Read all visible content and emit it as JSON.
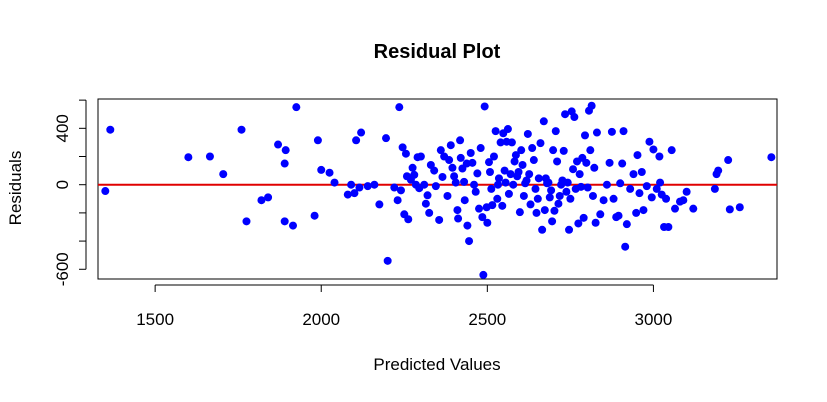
{
  "chart_data": {
    "type": "scatter",
    "title": "Residual Plot",
    "xlabel": "Predicted Values",
    "ylabel": "Residuals",
    "xlim": [
      1328,
      3372
    ],
    "ylim": [
      -669,
      608
    ],
    "xticks": [
      1500,
      2000,
      2500,
      3000
    ],
    "xtick_labels": [
      "1500",
      "2000",
      "2500",
      "3000"
    ],
    "yticks": [
      -600,
      -400,
      -200,
      0,
      200,
      400,
      600
    ],
    "ytick_labels": [
      "-600",
      "",
      "",
      "0",
      "",
      "400",
      ""
    ],
    "grid": false,
    "point_color": "#0000ff",
    "reference_line": {
      "y": 0,
      "color": "#e00000"
    },
    "points": [
      [
        1350,
        -45
      ],
      [
        1365,
        390
      ],
      [
        1600,
        195
      ],
      [
        1665,
        200
      ],
      [
        1705,
        75
      ],
      [
        1760,
        390
      ],
      [
        1775,
        -260
      ],
      [
        1820,
        -110
      ],
      [
        1840,
        -90
      ],
      [
        1870,
        285
      ],
      [
        1890,
        150
      ],
      [
        1893,
        245
      ],
      [
        1890,
        -260
      ],
      [
        1915,
        -290
      ],
      [
        1925,
        550
      ],
      [
        1980,
        -220
      ],
      [
        1990,
        315
      ],
      [
        2000,
        105
      ],
      [
        2025,
        85
      ],
      [
        2040,
        15
      ],
      [
        2080,
        -70
      ],
      [
        2090,
        0
      ],
      [
        2100,
        -60
      ],
      [
        2105,
        315
      ],
      [
        2115,
        -20
      ],
      [
        2120,
        370
      ],
      [
        2140,
        -10
      ],
      [
        2160,
        0
      ],
      [
        2175,
        -140
      ],
      [
        2195,
        330
      ],
      [
        2200,
        -540
      ],
      [
        2220,
        -20
      ],
      [
        2230,
        -110
      ],
      [
        2240,
        -40
      ],
      [
        2235,
        550
      ],
      [
        2245,
        265
      ],
      [
        2250,
        -210
      ],
      [
        2255,
        220
      ],
      [
        2258,
        60
      ],
      [
        2262,
        -245
      ],
      [
        2270,
        35
      ],
      [
        2275,
        120
      ],
      [
        2280,
        70
      ],
      [
        2285,
        0
      ],
      [
        2290,
        195
      ],
      [
        2295,
        -25
      ],
      [
        2300,
        200
      ],
      [
        2310,
        0
      ],
      [
        2315,
        -135
      ],
      [
        2320,
        -75
      ],
      [
        2325,
        -200
      ],
      [
        2330,
        140
      ],
      [
        2340,
        100
      ],
      [
        2345,
        -10
      ],
      [
        2355,
        -250
      ],
      [
        2360,
        245
      ],
      [
        2365,
        55
      ],
      [
        2370,
        200
      ],
      [
        2380,
        -80
      ],
      [
        2385,
        175
      ],
      [
        2390,
        280
      ],
      [
        2395,
        120
      ],
      [
        2400,
        60
      ],
      [
        2405,
        15
      ],
      [
        2410,
        -180
      ],
      [
        2412,
        -240
      ],
      [
        2418,
        315
      ],
      [
        2420,
        190
      ],
      [
        2425,
        115
      ],
      [
        2430,
        20
      ],
      [
        2432,
        -110
      ],
      [
        2438,
        150
      ],
      [
        2440,
        -290
      ],
      [
        2445,
        -400
      ],
      [
        2450,
        225
      ],
      [
        2455,
        155
      ],
      [
        2460,
        0
      ],
      [
        2465,
        -50
      ],
      [
        2470,
        80
      ],
      [
        2475,
        -170
      ],
      [
        2480,
        260
      ],
      [
        2485,
        -230
      ],
      [
        2488,
        -640
      ],
      [
        2492,
        555
      ],
      [
        2498,
        -160
      ],
      [
        2500,
        -270
      ],
      [
        2505,
        160
      ],
      [
        2508,
        90
      ],
      [
        2512,
        -30
      ],
      [
        2515,
        -145
      ],
      [
        2520,
        200
      ],
      [
        2525,
        380
      ],
      [
        2530,
        -100
      ],
      [
        2532,
        0
      ],
      [
        2535,
        45
      ],
      [
        2540,
        300
      ],
      [
        2545,
        -150
      ],
      [
        2548,
        365
      ],
      [
        2552,
        100
      ],
      [
        2555,
        15
      ],
      [
        2558,
        305
      ],
      [
        2562,
        395
      ],
      [
        2565,
        -65
      ],
      [
        2570,
        75
      ],
      [
        2574,
        300
      ],
      [
        2578,
        0
      ],
      [
        2582,
        165
      ],
      [
        2586,
        210
      ],
      [
        2590,
        60
      ],
      [
        2594,
        90
      ],
      [
        2598,
        -195
      ],
      [
        2602,
        245
      ],
      [
        2606,
        140
      ],
      [
        2610,
        -80
      ],
      [
        2614,
        10
      ],
      [
        2618,
        30
      ],
      [
        2622,
        360
      ],
      [
        2626,
        75
      ],
      [
        2630,
        -140
      ],
      [
        2635,
        260
      ],
      [
        2640,
        175
      ],
      [
        2645,
        -30
      ],
      [
        2648,
        -200
      ],
      [
        2652,
        -100
      ],
      [
        2655,
        45
      ],
      [
        2660,
        295
      ],
      [
        2665,
        -320
      ],
      [
        2670,
        450
      ],
      [
        2673,
        -180
      ],
      [
        2676,
        45
      ],
      [
        2680,
        10
      ],
      [
        2684,
        15
      ],
      [
        2688,
        -90
      ],
      [
        2692,
        -40
      ],
      [
        2695,
        -260
      ],
      [
        2698,
        245
      ],
      [
        2702,
        -185
      ],
      [
        2706,
        380
      ],
      [
        2710,
        165
      ],
      [
        2714,
        -135
      ],
      [
        2718,
        -80
      ],
      [
        2722,
        0
      ],
      [
        2726,
        30
      ],
      [
        2730,
        240
      ],
      [
        2734,
        500
      ],
      [
        2738,
        -50
      ],
      [
        2742,
        15
      ],
      [
        2746,
        -320
      ],
      [
        2750,
        -100
      ],
      [
        2754,
        520
      ],
      [
        2758,
        110
      ],
      [
        2762,
        480
      ],
      [
        2766,
        -30
      ],
      [
        2770,
        165
      ],
      [
        2774,
        -275
      ],
      [
        2778,
        75
      ],
      [
        2782,
        -15
      ],
      [
        2786,
        190
      ],
      [
        2790,
        -235
      ],
      [
        2794,
        350
      ],
      [
        2798,
        155
      ],
      [
        2802,
        -20
      ],
      [
        2806,
        525
      ],
      [
        2810,
        245
      ],
      [
        2814,
        560
      ],
      [
        2818,
        -80
      ],
      [
        2822,
        120
      ],
      [
        2826,
        -270
      ],
      [
        2830,
        370
      ],
      [
        2840,
        -210
      ],
      [
        2850,
        -110
      ],
      [
        2860,
        0
      ],
      [
        2868,
        155
      ],
      [
        2875,
        375
      ],
      [
        2880,
        -100
      ],
      [
        2888,
        -230
      ],
      [
        2895,
        -220
      ],
      [
        2900,
        10
      ],
      [
        2906,
        150
      ],
      [
        2910,
        380
      ],
      [
        2915,
        -440
      ],
      [
        2920,
        -280
      ],
      [
        2930,
        -30
      ],
      [
        2940,
        75
      ],
      [
        2948,
        -200
      ],
      [
        2952,
        210
      ],
      [
        2958,
        -60
      ],
      [
        2965,
        90
      ],
      [
        2970,
        -180
      ],
      [
        2980,
        -10
      ],
      [
        2988,
        305
      ],
      [
        2995,
        -90
      ],
      [
        3000,
        250
      ],
      [
        3010,
        -30
      ],
      [
        3018,
        200
      ],
      [
        3020,
        15
      ],
      [
        3025,
        -70
      ],
      [
        3032,
        -300
      ],
      [
        3038,
        -100
      ],
      [
        3045,
        -300
      ],
      [
        3055,
        245
      ],
      [
        3065,
        -170
      ],
      [
        3080,
        -120
      ],
      [
        3090,
        -110
      ],
      [
        3100,
        -50
      ],
      [
        3120,
        -170
      ],
      [
        3185,
        -30
      ],
      [
        3190,
        75
      ],
      [
        3195,
        100
      ],
      [
        3225,
        175
      ],
      [
        3230,
        -175
      ],
      [
        3260,
        -160
      ],
      [
        3355,
        195
      ]
    ]
  }
}
